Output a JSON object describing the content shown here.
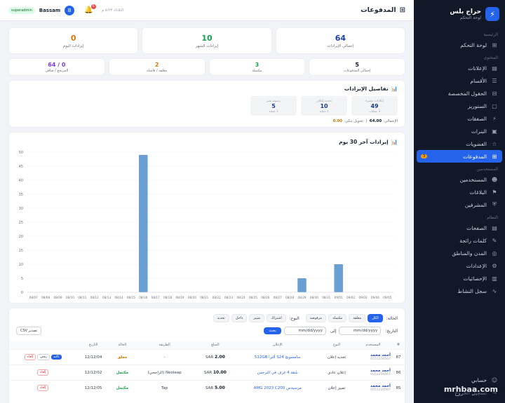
{
  "topbar": {
    "title": "المدفوعات",
    "user": "Bassam",
    "role": "superadmin",
    "avatar": "B",
    "notif": "6",
    "date": "الثلاثاء ٥/٢٣ م"
  },
  "brand": {
    "name": "حراج بلس",
    "sub": "لوحة التحكم"
  },
  "sidebar": {
    "sec_main": "الرئيسية",
    "sec_content": "المحتوى",
    "sec_users": "المستخدمين",
    "sec_system": "النظام",
    "items": [
      {
        "label": "لوحة التحكم",
        "icon": "⊞"
      },
      {
        "label": "الإعلانات",
        "icon": "▤"
      },
      {
        "label": "الأقسام",
        "icon": "☰"
      },
      {
        "label": "الحقول المخصصة",
        "icon": "⊟"
      },
      {
        "label": "الستوريز",
        "icon": "▢"
      },
      {
        "label": "الصفقات",
        "icon": "⚡"
      },
      {
        "label": "البنرات",
        "icon": "▣"
      },
      {
        "label": "العضويات",
        "icon": "☆"
      },
      {
        "label": "المدفوعات",
        "icon": "⊞",
        "badge": "3"
      },
      {
        "label": "المستخدمين",
        "icon": "☻"
      },
      {
        "label": "البلاغات",
        "icon": "⚑"
      },
      {
        "label": "المشرفين",
        "icon": "⛨"
      },
      {
        "label": "الصفحات",
        "icon": "▤"
      },
      {
        "label": "كلمات رائجة",
        "icon": "✎"
      },
      {
        "label": "المدن والمناطق",
        "icon": "◎"
      },
      {
        "label": "الإعدادات",
        "icon": "⚙"
      },
      {
        "label": "الإحصائيات",
        "icon": "▥"
      },
      {
        "label": "سجل النشاط",
        "icon": "∿"
      }
    ],
    "footer": [
      {
        "label": "حسابي",
        "icon": "☺"
      },
      {
        "label": "تسجيل الخروج",
        "icon": "⇥"
      }
    ]
  },
  "stats_top": [
    {
      "value": "64",
      "label": "إجمالي الإيرادات",
      "color": "blue"
    },
    {
      "value": "10",
      "label": "إيرادات الشهر",
      "color": "green"
    },
    {
      "value": "0",
      "label": "إيرادات اليوم",
      "color": "amber"
    }
  ],
  "stats_second": [
    {
      "value": "5",
      "label": "إجمالي المدفوعات",
      "color": "dark"
    },
    {
      "value": "3",
      "label": "مكتملة",
      "color": "green"
    },
    {
      "value": "2",
      "label": "معلقة / فاشلة",
      "color": "amber"
    },
    {
      "value": "0 / 64",
      "label": "المرتجع / صافي",
      "color": "purple"
    }
  ],
  "details": {
    "title": "تفاصيل الإيرادات",
    "minis": [
      {
        "label": "إعلانات مميزة",
        "value": "49",
        "sub": "3 عمليات"
      },
      {
        "label": "تجديد إعلان",
        "value": "10",
        "sub": "1 عملية"
      },
      {
        "label": "رسوم نشر",
        "value": "5",
        "sub": "1 عملية"
      }
    ],
    "total_label": "الإجمالي:",
    "total": "64.00",
    "wallet_label": "تحويل بنكي:",
    "wallet": "0.00"
  },
  "chart_data": {
    "type": "bar",
    "title": "إيرادات آخر 30 يوم",
    "categories": [
      "08/07",
      "08/08",
      "08/09",
      "08/10",
      "08/11",
      "08/12",
      "08/13",
      "08/14",
      "08/15",
      "08/16",
      "08/17",
      "08/18",
      "08/19",
      "08/20",
      "08/21",
      "08/22",
      "08/23",
      "08/24",
      "08/25",
      "08/26",
      "08/27",
      "08/28",
      "08/29",
      "08/30",
      "08/31",
      "09/01",
      "09/02",
      "09/03",
      "09/04",
      "09/05"
    ],
    "values": [
      0,
      0,
      0,
      0,
      0,
      0,
      0,
      0,
      0,
      49,
      0,
      0,
      0,
      0,
      0,
      0,
      0,
      0,
      0,
      0,
      0,
      0,
      5,
      0,
      0,
      10,
      0,
      0,
      0,
      0
    ],
    "yticks": [
      "0",
      "5",
      "10",
      "15",
      "20",
      "25",
      "30",
      "35",
      "40",
      "45",
      "50"
    ],
    "ylim": [
      0,
      50
    ],
    "color": "#6b9fd4"
  },
  "table": {
    "status_label": "الحالة:",
    "status": [
      {
        "label": "الكل",
        "on": true
      },
      {
        "label": "معلقة"
      },
      {
        "label": "مكتملة"
      },
      {
        "label": "مرفوضة"
      }
    ],
    "type_label": "النوع:",
    "types": [
      {
        "label": "اشتراك"
      },
      {
        "label": "تمييز"
      },
      {
        "label": "داخل"
      },
      {
        "label": "تجديد"
      }
    ],
    "date_label": "التاريخ:",
    "date_from": "mm/dd/yyyy",
    "date_to": "mm/dd/yyyy",
    "to": "إلى",
    "search": "بحث",
    "export": "تصدير CSV",
    "headers": [
      "#",
      "المستخدم",
      "النوع",
      "الإعلان",
      "المبلغ",
      "الطريقة",
      "الحالة",
      "التاريخ",
      ""
    ],
    "rows": [
      {
        "id": "87",
        "name": "أحمد محمد",
        "phone": "0551234567",
        "type": "تجديد إعلان",
        "ad": "سامسونج S24 ألترا 512GB",
        "amount": "2.00",
        "cur": "SAR",
        "method": "-",
        "status": "معلق",
        "pending": true,
        "date": "12/12/04",
        "actions": [
          "تأكيد",
          "رفض",
          "إلغاء"
        ]
      },
      {
        "id": "86",
        "name": "أحمد محمد",
        "phone": "0551234567",
        "type": "إعلان عادي",
        "ad": "شقة 4 غرف في النرجس",
        "amount": "10.00",
        "cur": "SAR",
        "method": "Neoleap (الراجحي)",
        "status": "مكتمل",
        "date": "12/12/02",
        "actions": [
          "إلغاء"
        ]
      },
      {
        "id": "85",
        "name": "أحمد محمد",
        "phone": "0551234567",
        "type": "تمييز إعلان",
        "ad": "مرسيدس AMG 2023 C200",
        "amount": "5.00",
        "cur": "SAR",
        "method": "Tap",
        "status": "مكتمل",
        "date": "12/12/05",
        "actions": [
          "إلغاء"
        ]
      }
    ]
  },
  "watermark": "mrhbaa.com"
}
